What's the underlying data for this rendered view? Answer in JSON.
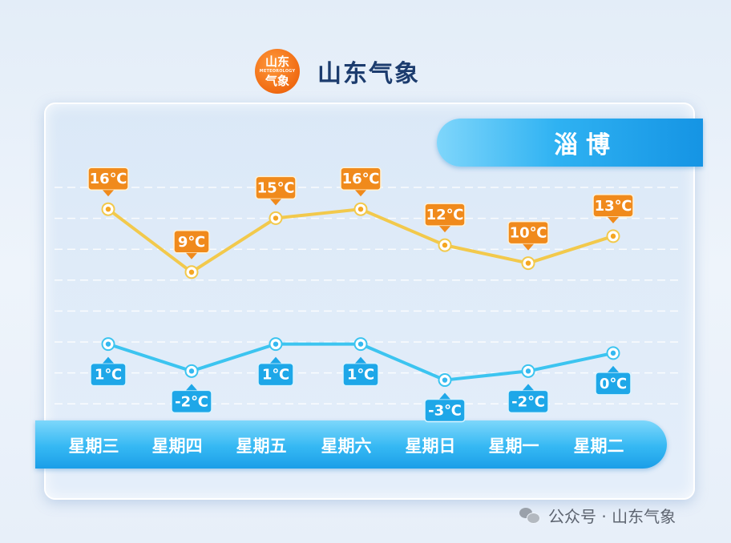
{
  "brand": {
    "logo_line1": "山东",
    "logo_line2": "METEOROLOGY",
    "logo_line3": "气象",
    "name": "山东气象"
  },
  "city": "淄博",
  "watermark": "公众号 · 山东气象",
  "colors": {
    "high_line": "#f2c94c",
    "high_label": "#f08a1c",
    "low_line": "#3cc4f0",
    "low_label": "#1ea7e8"
  },
  "chart_data": {
    "type": "line",
    "categories": [
      "星期三",
      "星期四",
      "星期五",
      "星期六",
      "星期日",
      "星期一",
      "星期二"
    ],
    "series": [
      {
        "values": [
          16,
          9,
          15,
          16,
          12,
          10,
          13
        ],
        "labels": [
          "16℃",
          "9℃",
          "15℃",
          "16℃",
          "12℃",
          "10℃",
          "13℃"
        ]
      },
      {
        "values": [
          1,
          -2,
          1,
          1,
          -3,
          -2,
          0
        ],
        "labels": [
          "1℃",
          "-2℃",
          "1℃",
          "1℃",
          "-3℃",
          "-2℃",
          "0℃"
        ]
      }
    ],
    "unit": "℃",
    "grid": true
  }
}
